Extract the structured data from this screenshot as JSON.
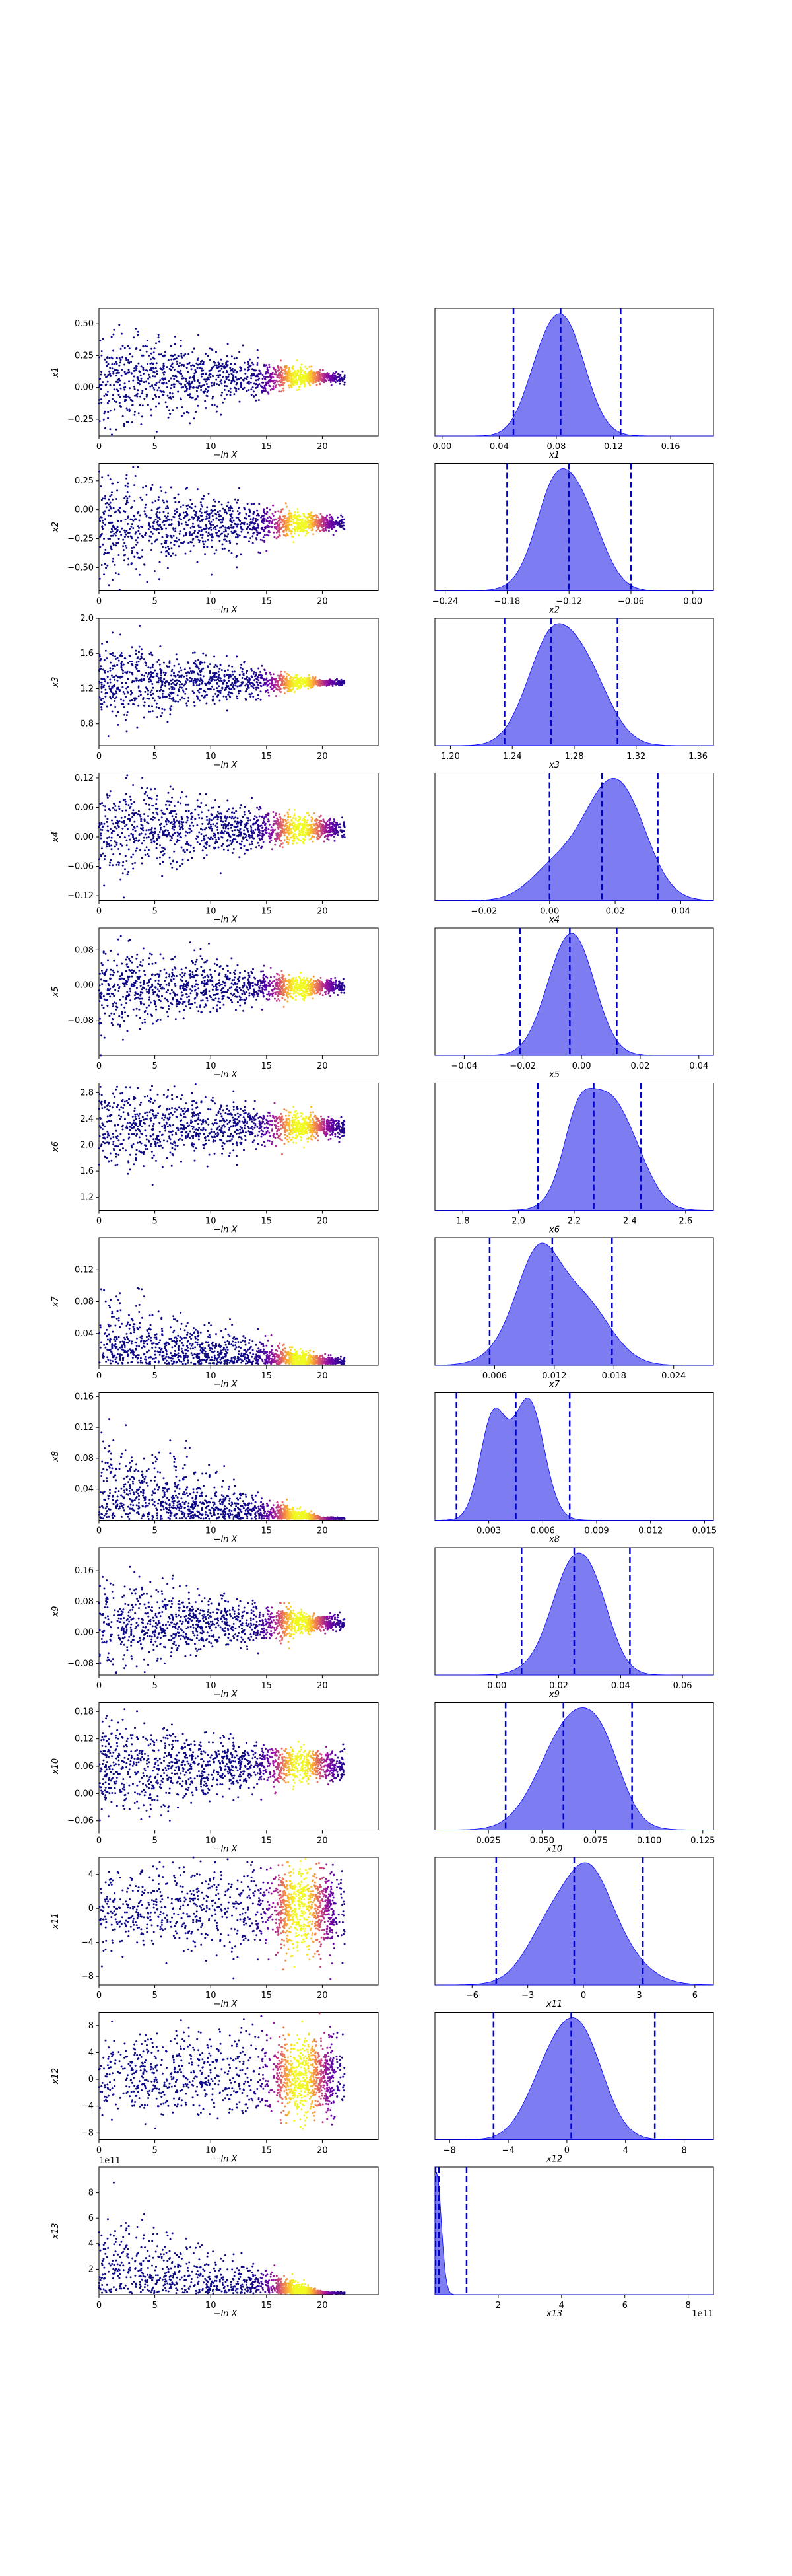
{
  "figure": {
    "trace_xlabel": "−ln X",
    "trace_xticks": [
      "0",
      "5",
      "10",
      "15",
      "20"
    ],
    "trace_xticks_val": [
      0,
      5,
      10,
      15,
      20
    ],
    "trace_xlim": [
      0,
      25
    ],
    "trace_colormap": [
      "#0d0887",
      "#5c01a6",
      "#9c179e",
      "#cc4778",
      "#ed7953",
      "#fdb42f",
      "#f0f921"
    ],
    "posterior_color": "#0000ff",
    "posterior_fill": "#6666ee"
  },
  "chart_data": [
    {
      "type": "scatter+density",
      "ylabel": "x1",
      "ylabel_sub": "1",
      "trace_yticks": [
        "−0.25",
        "0.00",
        "0.25",
        "0.50"
      ],
      "trace_yvals": [
        -0.25,
        0,
        0.25,
        0.5
      ],
      "trace_ylim": [
        -0.38,
        0.62
      ],
      "trace_center": 0.08,
      "trace_spread0": 0.2,
      "trace_spread_end": 0.02,
      "post_xticks": [
        "0.00",
        "0.04",
        "0.08",
        "0.12",
        "0.16"
      ],
      "post_xvals": [
        0,
        0.04,
        0.08,
        0.12,
        0.16
      ],
      "post_xlim": [
        -0.005,
        0.19
      ],
      "post_xlabel": "x1",
      "post_mean": 0.085,
      "post_sd": 0.02,
      "quantiles": [
        0.05,
        0.083,
        0.125
      ],
      "post_offset": ""
    },
    {
      "type": "scatter+density",
      "ylabel": "x2",
      "ylabel_sub": "2",
      "trace_yticks": [
        "−0.50",
        "−0.25",
        "0.00",
        "0.25"
      ],
      "trace_yvals": [
        -0.5,
        -0.25,
        0,
        0.25
      ],
      "trace_ylim": [
        -0.7,
        0.4
      ],
      "trace_center": -0.12,
      "trace_spread0": 0.22,
      "trace_spread_end": 0.03,
      "post_xticks": [
        "−0.24",
        "−0.18",
        "−0.12",
        "−0.06",
        "0.00"
      ],
      "post_xvals": [
        -0.24,
        -0.18,
        -0.12,
        -0.06,
        0
      ],
      "post_xlim": [
        -0.25,
        0.02
      ],
      "post_xlabel": "x2",
      "post_mean": -0.12,
      "post_sd": 0.03,
      "quantiles": [
        -0.18,
        -0.12,
        -0.06
      ],
      "post_offset": ""
    },
    {
      "type": "scatter+density",
      "ylabel": "x3",
      "ylabel_sub": "3",
      "trace_yticks": [
        "0.8",
        "1.2",
        "1.6",
        "2.0"
      ],
      "trace_yvals": [
        0.8,
        1.2,
        1.6,
        2.0
      ],
      "trace_ylim": [
        0.55,
        2.0
      ],
      "trace_center": 1.27,
      "trace_spread0": 0.25,
      "trace_spread_end": 0.015,
      "post_xticks": [
        "1.20",
        "1.24",
        "1.28",
        "1.32",
        "1.36"
      ],
      "post_xvals": [
        1.2,
        1.24,
        1.28,
        1.32,
        1.36
      ],
      "post_xlim": [
        1.19,
        1.37
      ],
      "post_xlabel": "x3",
      "post_mean": 1.272,
      "post_sd": 0.018,
      "quantiles": [
        1.235,
        1.265,
        1.308
      ],
      "post_offset": ""
    },
    {
      "type": "scatter+density",
      "ylabel": "x4",
      "ylabel_sub": "4",
      "trace_yticks": [
        "−0.12",
        "−0.06",
        "0.00",
        "0.06",
        "0.12"
      ],
      "trace_yvals": [
        -0.12,
        -0.06,
        0,
        0.06,
        0.12
      ],
      "trace_ylim": [
        -0.13,
        0.13
      ],
      "trace_center": 0.016,
      "trace_spread0": 0.05,
      "trace_spread_end": 0.01,
      "post_xticks": [
        "−0.02",
        "0.00",
        "0.02",
        "0.04"
      ],
      "post_xvals": [
        -0.02,
        0,
        0.02,
        0.04
      ],
      "post_xlim": [
        -0.035,
        0.05
      ],
      "post_xlabel": "x4",
      "post_mean": 0.016,
      "post_sd": 0.011,
      "quantiles": [
        0.0,
        0.016,
        0.033
      ],
      "post_offset": ""
    },
    {
      "type": "scatter+density",
      "ylabel": "x5",
      "ylabel_sub": "5",
      "trace_yticks": [
        "−0.08",
        "0.00",
        "0.08"
      ],
      "trace_yvals": [
        -0.08,
        0,
        0.08
      ],
      "trace_ylim": [
        -0.16,
        0.13
      ],
      "trace_center": -0.004,
      "trace_spread0": 0.05,
      "trace_spread_end": 0.008,
      "post_xticks": [
        "−0.04",
        "−0.02",
        "0.00",
        "0.02",
        "0.04"
      ],
      "post_xvals": [
        -0.04,
        -0.02,
        0,
        0.02,
        0.04
      ],
      "post_xlim": [
        -0.05,
        0.045
      ],
      "post_xlabel": "x5",
      "post_mean": -0.004,
      "post_sd": 0.009,
      "quantiles": [
        -0.021,
        -0.004,
        0.012
      ],
      "post_offset": ""
    },
    {
      "type": "scatter+density",
      "ylabel": "x6",
      "ylabel_sub": "6",
      "trace_yticks": [
        "1.2",
        "1.6",
        "2.0",
        "2.4",
        "2.8"
      ],
      "trace_yvals": [
        1.2,
        1.6,
        2.0,
        2.4,
        2.8
      ],
      "trace_ylim": [
        1.0,
        2.95
      ],
      "trace_center": 2.28,
      "trace_spread0": 0.35,
      "trace_spread_end": 0.08,
      "post_xticks": [
        "1.8",
        "2.0",
        "2.2",
        "2.4",
        "2.6"
      ],
      "post_xvals": [
        1.8,
        2.0,
        2.2,
        2.4,
        2.6
      ],
      "post_xlim": [
        1.7,
        2.7
      ],
      "post_xlabel": "x6",
      "post_mean": 2.27,
      "post_sd": 0.09,
      "quantiles": [
        2.07,
        2.27,
        2.44
      ],
      "post_offset": ""
    },
    {
      "type": "scatter+density",
      "ylabel": "x7",
      "ylabel_sub": "7",
      "trace_yticks": [
        "0.04",
        "0.08",
        "0.12"
      ],
      "trace_yvals": [
        0.04,
        0.08,
        0.12
      ],
      "trace_ylim": [
        0.0,
        0.16
      ],
      "trace_center": 0.012,
      "trace_spread0": 0.04,
      "trace_spread_end": 0.004,
      "post_xticks": [
        "0.006",
        "0.012",
        "0.018",
        "0.024"
      ],
      "post_xvals": [
        0.006,
        0.012,
        0.018,
        0.024
      ],
      "post_xlim": [
        0.0,
        0.028
      ],
      "post_xlabel": "x7",
      "post_mean": 0.012,
      "post_sd": 0.0032,
      "quantiles": [
        0.0055,
        0.0118,
        0.0178
      ],
      "post_offset": ""
    },
    {
      "type": "scatter+density",
      "ylabel": "x8",
      "ylabel_sub": "8",
      "trace_yticks": [
        "0.04",
        "0.08",
        "0.12",
        "0.16"
      ],
      "trace_yvals": [
        0.04,
        0.08,
        0.12,
        0.16
      ],
      "trace_ylim": [
        0.0,
        0.165
      ],
      "trace_center": 0.0045,
      "trace_spread0": 0.05,
      "trace_spread_end": 0.001,
      "post_xticks": [
        "0.003",
        "0.006",
        "0.009",
        "0.012",
        "0.015"
      ],
      "post_xvals": [
        0.003,
        0.006,
        0.009,
        0.012,
        0.015
      ],
      "post_xlim": [
        0.0,
        0.0155
      ],
      "post_xlabel": "x8",
      "post_mean": 0.0045,
      "post_sd": 0.0013,
      "quantiles": [
        0.0012,
        0.0045,
        0.0075
      ],
      "post_offset": ""
    },
    {
      "type": "scatter+density",
      "ylabel": "x9",
      "ylabel_sub": "9",
      "trace_yticks": [
        "−0.08",
        "0.00",
        "0.08",
        "0.16"
      ],
      "trace_yvals": [
        -0.08,
        0,
        0.08,
        0.16
      ],
      "trace_ylim": [
        -0.11,
        0.22
      ],
      "trace_center": 0.025,
      "trace_spread0": 0.06,
      "trace_spread_end": 0.01,
      "post_xticks": [
        "0.00",
        "0.02",
        "0.04",
        "0.06"
      ],
      "post_xvals": [
        0,
        0.02,
        0.04,
        0.06
      ],
      "post_xlim": [
        -0.02,
        0.07
      ],
      "post_xlabel": "x9",
      "post_mean": 0.025,
      "post_sd": 0.01,
      "quantiles": [
        0.008,
        0.025,
        0.043
      ],
      "post_offset": ""
    },
    {
      "type": "scatter+density",
      "ylabel": "x10",
      "ylabel_sub": "10",
      "trace_yticks": [
        "−0.06",
        "0.00",
        "0.06",
        "0.12",
        "0.18"
      ],
      "trace_yvals": [
        -0.06,
        0,
        0.06,
        0.12,
        0.18
      ],
      "trace_ylim": [
        -0.08,
        0.2
      ],
      "trace_center": 0.062,
      "trace_spread0": 0.05,
      "trace_spread_end": 0.015,
      "post_xticks": [
        "0.025",
        "0.050",
        "0.075",
        "0.100",
        "0.125"
      ],
      "post_xvals": [
        0.025,
        0.05,
        0.075,
        0.1,
        0.125
      ],
      "post_xlim": [
        0.0,
        0.13
      ],
      "post_xlabel": "x10",
      "post_mean": 0.062,
      "post_sd": 0.016,
      "quantiles": [
        0.033,
        0.06,
        0.092
      ],
      "post_offset": ""
    },
    {
      "type": "scatter+density",
      "ylabel": "x11",
      "ylabel_sub": "11",
      "trace_yticks": [
        "−8",
        "−4",
        "0",
        "4"
      ],
      "trace_yvals": [
        -8,
        -4,
        0,
        4
      ],
      "trace_ylim": [
        -9,
        6
      ],
      "trace_center": 0,
      "trace_spread0": 2.5,
      "trace_spread_end": 2.5,
      "post_xticks": [
        "−6",
        "−3",
        "0",
        "3",
        "6"
      ],
      "post_xvals": [
        -6,
        -3,
        0,
        3,
        6
      ],
      "post_xlim": [
        -8,
        7
      ],
      "post_xlabel": "x11",
      "post_mean": -0.5,
      "post_sd": 2.0,
      "quantiles": [
        -4.7,
        -0.5,
        3.2
      ],
      "post_offset": ""
    },
    {
      "type": "scatter+density",
      "ylabel": "x12",
      "ylabel_sub": "12",
      "trace_yticks": [
        "−8",
        "−4",
        "0",
        "4",
        "8"
      ],
      "trace_yvals": [
        -8,
        -4,
        0,
        4,
        8
      ],
      "trace_ylim": [
        -9,
        10
      ],
      "trace_center": 0.5,
      "trace_spread0": 3.0,
      "trace_spread_end": 3.0,
      "post_xticks": [
        "−8",
        "−4",
        "0",
        "4",
        "8"
      ],
      "post_xvals": [
        -8,
        -4,
        0,
        4,
        8
      ],
      "post_xlim": [
        -9,
        10
      ],
      "post_xlabel": "x12",
      "post_mean": 0.3,
      "post_sd": 2.6,
      "quantiles": [
        -5.0,
        0.3,
        6.0
      ],
      "post_offset": ""
    },
    {
      "type": "scatter+density",
      "ylabel": "x13",
      "ylabel_sub": "13",
      "trace_yticks": [
        "2",
        "4",
        "6",
        "8"
      ],
      "trace_yvals": [
        2,
        4,
        6,
        8
      ],
      "trace_ylim": [
        0,
        10
      ],
      "trace_center": 0.1,
      "trace_spread0": 3.0,
      "trace_spread_end": 0.05,
      "trace_offset": "1e11",
      "post_xticks": [
        "2",
        "4",
        "6",
        "8"
      ],
      "post_xvals": [
        2,
        4,
        6,
        8
      ],
      "post_xlim": [
        0,
        8.8
      ],
      "post_xlabel": "x13",
      "post_mean": 0.1,
      "post_sd": 0.25,
      "quantiles": [
        0.02,
        0.12,
        1.0
      ],
      "post_offset": "1e11"
    }
  ]
}
